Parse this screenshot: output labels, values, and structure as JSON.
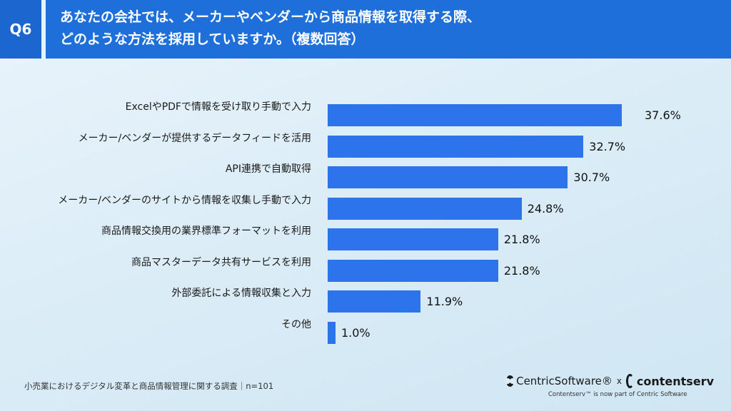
{
  "header": {
    "badge": "Q6",
    "title": "あなたの会社では、メーカーやベンダーから商品情報を取得する際、\nどのような方法を採用していますか。（複数回答）"
  },
  "chart_data": {
    "type": "bar",
    "orientation": "horizontal",
    "categories": [
      "ExcelやPDFで情報を受け取り手動で入力",
      "メーカー/ベンダーが提供するデータフィードを活用",
      "API連携で自動取得",
      "メーカー/ベンダーのサイトから情報を収集し手動で入力",
      "商品情報交換用の業界標準フォーマットを利用",
      "商品マスターデータ共有サービスを利用",
      "外部委託による情報収集と入力",
      "その他"
    ],
    "values": [
      37.6,
      32.7,
      30.7,
      24.8,
      21.8,
      21.8,
      11.9,
      1.0
    ],
    "value_labels": [
      "37.6%",
      "32.7%",
      "30.7%",
      "24.8%",
      "21.8%",
      "21.8%",
      "11.9%",
      "1.0%"
    ],
    "unit": "%",
    "bar_color": "#2d73ec"
  },
  "footer": {
    "note": "小売業におけるデジタル変革と商品情報管理に関する調査｜n=101",
    "logo_centric": "CentricSoftware®",
    "logo_times": "x",
    "logo_contentserv": "contentserv",
    "logo_sub": "Contentserv™ is now part of Centric Software"
  },
  "colors": {
    "header_bg": "#1e6fd9",
    "bar": "#2d73ec"
  }
}
